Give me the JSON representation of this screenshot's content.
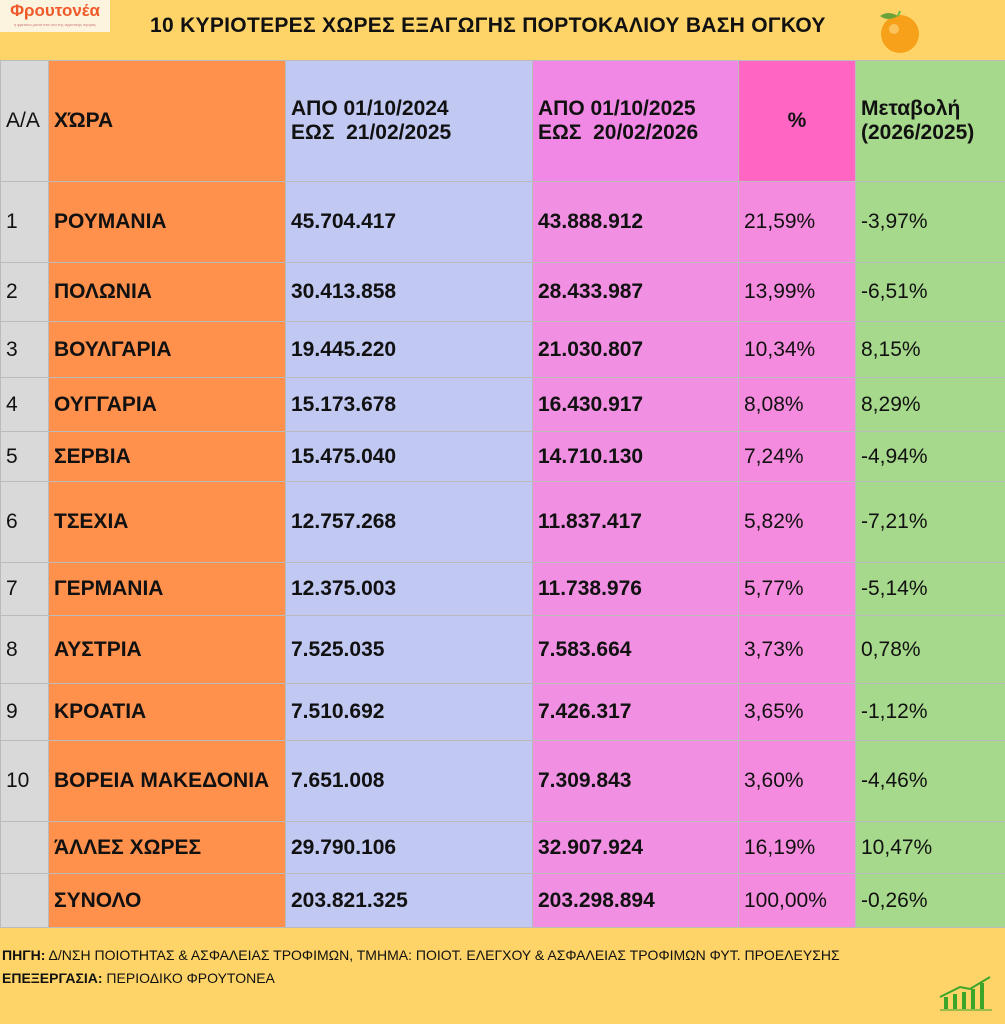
{
  "logo": {
    "name": "Φρουτονέα",
    "tagline": "η φρέσκια ματιά στα νέα της αγροτικής αγοράς"
  },
  "title": "10 ΚΥΡΙΟΤΕΡΕΣ ΧΩΡΕΣ ΕΞΑΓΩΓΗΣ ΠΟΡΤΟΚΑΛΙΟΥ ΒΑΣΗ ΟΓΚΟΥ",
  "header": {
    "aa": "Α/Α",
    "country": "ΧΏΡΑ",
    "p1a": "ΑΠΟ 01/10/2024",
    "p1b": "ΕΩΣ  21/02/2025",
    "p2a": "ΑΠΟ 01/10/2025",
    "p2b": "ΕΩΣ  20/02/2026",
    "pct": "%",
    "chg_a": "Μεταβολή",
    "chg_b": "(2026/2025)"
  },
  "rows": [
    {
      "aa": "1",
      "country": "ΡΟΥΜΑΝΙΑ",
      "v1": "45.704.417",
      "v2": "43.888.912",
      "pct": "21,59%",
      "chg": "-3,97%"
    },
    {
      "aa": "2",
      "country": "ΠΟΛΩΝΙΑ",
      "v1": "30.413.858",
      "v2": "28.433.987",
      "pct": "13,99%",
      "chg": "-6,51%"
    },
    {
      "aa": "3",
      "country": "ΒΟΥΛΓΑΡΙΑ",
      "v1": "19.445.220",
      "v2": "21.030.807",
      "pct": "10,34%",
      "chg": "8,15%"
    },
    {
      "aa": "4",
      "country": "ΟΥΓΓΑΡΙΑ",
      "v1": "15.173.678",
      "v2": "16.430.917",
      "pct": "8,08%",
      "chg": "8,29%"
    },
    {
      "aa": "5",
      "country": "ΣΕΡΒΙΑ",
      "v1": "15.475.040",
      "v2": "14.710.130",
      "pct": "7,24%",
      "chg": "-4,94%"
    },
    {
      "aa": "6",
      "country": "ΤΣΕΧΙΑ",
      "v1": "12.757.268",
      "v2": "11.837.417",
      "pct": "5,82%",
      "chg": "-7,21%"
    },
    {
      "aa": "7",
      "country": "ΓΕΡΜΑΝΙΑ",
      "v1": "12.375.003",
      "v2": "11.738.976",
      "pct": "5,77%",
      "chg": "-5,14%"
    },
    {
      "aa": "8",
      "country": "ΑΥΣΤΡΙΑ",
      "v1": "7.525.035",
      "v2": "7.583.664",
      "pct": "3,73%",
      "chg": "0,78%"
    },
    {
      "aa": "9",
      "country": "ΚΡΟΑΤΙΑ",
      "v1": "7.510.692",
      "v2": "7.426.317",
      "pct": "3,65%",
      "chg": "-1,12%"
    },
    {
      "aa": "10",
      "country": "ΒΟΡΕΙΑ ΜΑΚΕΔΟΝΙΑ",
      "v1": "7.651.008",
      "v2": "7.309.843",
      "pct": "3,60%",
      "chg": "-4,46%"
    },
    {
      "aa": "",
      "country": "ΆΛΛΕΣ ΧΩΡΕΣ",
      "v1": "29.790.106",
      "v2": "32.907.924",
      "pct": "16,19%",
      "chg": "10,47%"
    },
    {
      "aa": "",
      "country": "ΣΥΝΟΛΟ",
      "v1": "203.821.325",
      "v2": "203.298.894",
      "pct": "100,00%",
      "chg": "-0,26%"
    }
  ],
  "footer": {
    "source_label": "ΠΗΓΗ:",
    "source": " Δ/ΝΣΗ ΠΟΙΟΤΗΤΑΣ & ΑΣΦΑΛΕΙΑΣ ΤΡΟΦΙΜΩΝ, ΤΜΗΜΑ: ΠΟΙΟΤ. ΕΛΕΓΧΟΥ & ΑΣΦΑΛΕΙΑΣ ΤΡΟΦΙΜΩΝ ΦΥΤ. ΠΡΟΕΛΕΥΣΗΣ",
    "proc_label": "ΕΠΕΞΕΡΓΑΣΙΑ:",
    "proc": " ΠΕΡΙΟΔΙΚΟ ΦΡΟΥΤΟΝΕΑ"
  }
}
